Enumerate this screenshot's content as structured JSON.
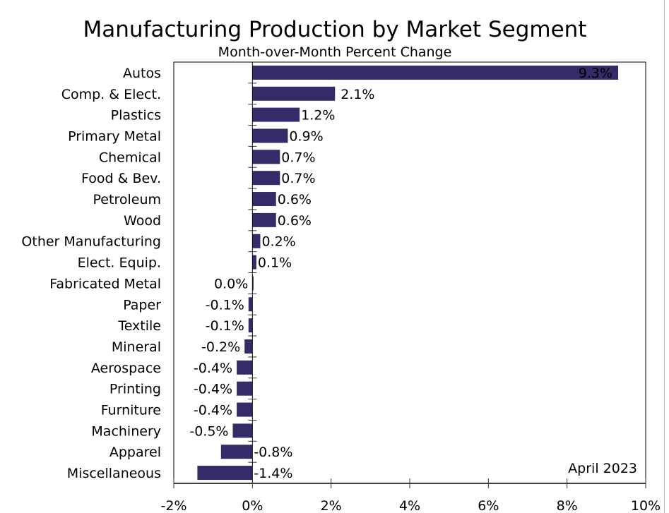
{
  "chart_data": {
    "type": "bar",
    "orientation": "horizontal",
    "title": "Manufacturing Production by Market Segment",
    "subtitle": "Month-over-Month Percent Change",
    "annotation": "April 2023",
    "categories": [
      "Autos",
      "Comp. & Elect.",
      "Plastics",
      "Primary Metal",
      "Chemical",
      "Food & Bev.",
      "Petroleum",
      "Wood",
      "Other Manufacturing",
      "Elect. Equip.",
      "Fabricated Metal",
      "Paper",
      "Textile",
      "Mineral",
      "Aerospace",
      "Printing",
      "Furniture",
      "Machinery",
      "Apparel",
      "Miscellaneous"
    ],
    "values": [
      9.3,
      2.1,
      1.2,
      0.9,
      0.7,
      0.7,
      0.6,
      0.6,
      0.2,
      0.1,
      0.0,
      -0.1,
      -0.1,
      -0.2,
      -0.4,
      -0.4,
      -0.4,
      -0.5,
      -0.8,
      -1.4
    ],
    "data_labels": [
      "9.3%",
      "2.1%",
      "1.2%",
      "0.9%",
      "0.7%",
      "0.7%",
      "0.6%",
      "0.6%",
      "0.2%",
      "0.1%",
      "0.0%",
      "-0.1%",
      "-0.1%",
      "-0.2%",
      "-0.4%",
      "-0.4%",
      "-0.4%",
      "-0.5%",
      "-0.8%",
      "-1.4%"
    ],
    "xlim": [
      -2,
      10
    ],
    "xticks": [
      -2,
      0,
      2,
      4,
      6,
      8,
      10
    ],
    "xtick_labels": [
      "-2%",
      "0%",
      "2%",
      "4%",
      "6%",
      "8%",
      "10%"
    ],
    "grid": false,
    "bar_color": "#352b68"
  }
}
